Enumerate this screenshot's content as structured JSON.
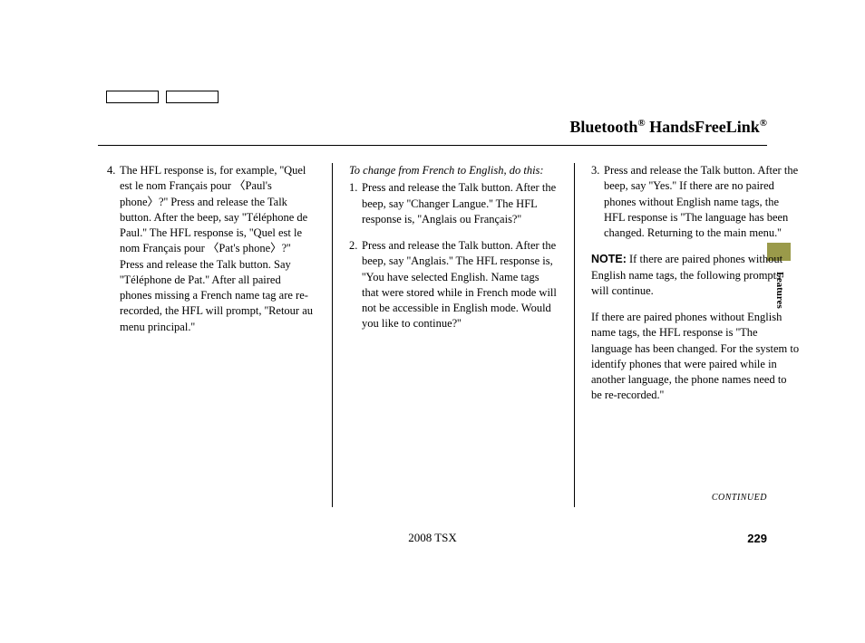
{
  "header": {
    "title_part1": "Bluetooth",
    "reg1": "®",
    "title_part2": " HandsFreeLink",
    "reg2": "®"
  },
  "sideTab": {
    "label": "Features",
    "color": "#9a9a4a"
  },
  "column1": {
    "item4_num": "4.",
    "item4_text": "The HFL response is, for example, ''Quel est le nom Français pour 〈Paul's phone〉?'' Press and release the Talk button. After the beep, say ''Téléphone de Paul.'' The HFL response is, ''Quel est le nom Français pour 〈Pat's phone〉?'' Press and release the Talk button. Say ''Téléphone de Pat.'' After all paired phones missing a French name tag are re-recorded, the HFL will prompt, ''Retour au menu principal.''"
  },
  "column2": {
    "lead": "To change from French to English, do this:",
    "item1_num": "1.",
    "item1_text": "Press and release the Talk button. After the beep, say ''Changer Langue.'' The HFL response is, ''Anglais ou Français?''",
    "item2_num": "2.",
    "item2_text": "Press and release the Talk button. After the beep, say ''Anglais.'' The HFL response is, ''You have selected English. Name tags that were stored while in French mode will not be accessible in English mode. Would you like to continue?''"
  },
  "column3": {
    "item3_num": "3.",
    "item3_text": "Press and release the Talk button. After the beep, say ''Yes.'' If there are no paired phones without English name tags, the HFL response is ''The language has been changed. Returning to the main menu.''",
    "note_label": "NOTE:",
    "note_text": " If there are paired phones without English name tags, the following prompts will continue.",
    "para2": "If there are paired phones without English name tags, the HFL response is ''The language has been changed. For the system to identify phones that were paired while in another language, the phone names need to be re-recorded.''"
  },
  "continued": "CONTINUED",
  "footer": {
    "center": "2008  TSX",
    "pageNum": "229"
  },
  "colors": {
    "text": "#000000",
    "background": "#ffffff",
    "tab": "#9a9a4a"
  },
  "typography": {
    "body_fontsize": 12.5,
    "header_fontsize": 18,
    "font_family": "Georgia, Times New Roman, serif"
  }
}
